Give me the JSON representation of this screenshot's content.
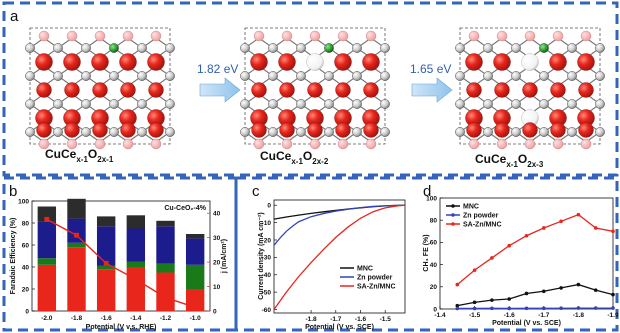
{
  "panel_labels": {
    "a": "a",
    "b": "b",
    "c": "c",
    "d": "d"
  },
  "panel_a": {
    "structures": [
      {
        "base": "CuCe",
        "sub1": "x-1",
        "mid": "O",
        "sub2": "2x-1"
      },
      {
        "base": "CuCe",
        "sub1": "x-1",
        "mid": "O",
        "sub2": "2x-2"
      },
      {
        "base": "CuCe",
        "sub1": "x-1",
        "mid": "O",
        "sub2": "2x-3"
      }
    ],
    "energies": [
      "1.82 eV",
      "1.65 eV"
    ],
    "colors": {
      "ox_vacancy": "#ffffff",
      "oxygen": "#e8261c",
      "oxygen_back": "#f3a0a0",
      "cerium": "#c9c9c9",
      "copper": "#2aa02b",
      "frame": "#3366bb"
    }
  },
  "chart_data": [
    {
      "type": "bar",
      "panel": "b",
      "annotation": "Cu-CeO₂-4%",
      "xlabel": "Potential (V v.s. RHE)",
      "ylabel_left": "Faradaic Efficiency (%)",
      "ylabel_right": "j (mA/cm²)",
      "categories": [
        "-2.0",
        "-1.8",
        "-1.6",
        "-1.4",
        "-1.2",
        "-1.0"
      ],
      "ylim": [
        0,
        100
      ],
      "ylim_right": [
        0,
        45
      ],
      "yticks": [
        0,
        20,
        40,
        60,
        80,
        100
      ],
      "yticks_right": [
        0,
        10,
        20,
        30,
        40
      ],
      "series": [
        {
          "color": "#e8261c",
          "values": [
            42,
            58,
            38,
            40,
            35,
            20
          ]
        },
        {
          "color": "#1a7a1a",
          "values": [
            6,
            4,
            3,
            5,
            8,
            22
          ]
        },
        {
          "color": "#1c1c8c",
          "values": [
            33,
            22,
            36,
            30,
            34,
            24
          ]
        },
        {
          "color": "#2c2c2c",
          "values": [
            14,
            18,
            9,
            12,
            5,
            4
          ]
        }
      ],
      "line": {
        "color": "#e8261c",
        "values": [
          37.5,
          31,
          19.5,
          13,
          5.5,
          1.5
        ]
      }
    },
    {
      "type": "line",
      "panel": "c",
      "xlabel": "Potential (V vs. SCE)",
      "ylabel": "Current density (mA cm⁻²)",
      "xlim": [
        -1.95,
        -1.42
      ],
      "ylim": [
        -62,
        3
      ],
      "xticks": [
        "-1.8",
        "-1.7",
        "-1.6",
        "-1.5"
      ],
      "yticks": [
        "0",
        "-10",
        "-20",
        "-30",
        "-40",
        "-50",
        "-60"
      ],
      "series": [
        {
          "name": "MNC",
          "color": "#111111",
          "x": [
            -1.95,
            -1.9,
            -1.85,
            -1.8,
            -1.75,
            -1.7,
            -1.65,
            -1.6,
            -1.55,
            -1.5,
            -1.45,
            -1.42
          ],
          "y": [
            -8,
            -6.8,
            -5.7,
            -4.7,
            -3.8,
            -3.0,
            -2.2,
            -1.5,
            -0.9,
            -0.4,
            -0.1,
            0
          ]
        },
        {
          "name": "Zn powder",
          "color": "#3344bb",
          "x": [
            -1.95,
            -1.92,
            -1.9,
            -1.87,
            -1.85,
            -1.8,
            -1.75,
            -1.7,
            -1.65,
            -1.6,
            -1.55,
            -1.5,
            -1.45,
            -1.42
          ],
          "y": [
            -23,
            -18,
            -15,
            -11.5,
            -9.5,
            -6.6,
            -4.8,
            -3.4,
            -2.3,
            -1.4,
            -0.7,
            -0.3,
            -0.1,
            0
          ]
        },
        {
          "name": "SA-Zn/MNC",
          "color": "#e8261c",
          "x": [
            -1.95,
            -1.9,
            -1.85,
            -1.8,
            -1.75,
            -1.7,
            -1.65,
            -1.6,
            -1.55,
            -1.5,
            -1.45,
            -1.42
          ],
          "y": [
            -60,
            -50,
            -41,
            -33,
            -25.5,
            -18.5,
            -12.5,
            -7.5,
            -3.8,
            -1.5,
            -0.4,
            0
          ]
        }
      ]
    },
    {
      "type": "line",
      "panel": "d",
      "xlabel": "Potential (V vs. SCE)",
      "ylabel": "CH₄ FE (%)",
      "xlim": [
        -1.4,
        -1.9
      ],
      "ylim": [
        0,
        100
      ],
      "xticks": [
        "-1.4",
        "-1.5",
        "-1.6",
        "-1.7",
        "-1.8",
        "-1.9"
      ],
      "yticks": [
        "0",
        "20",
        "40",
        "60",
        "80",
        "100"
      ],
      "series": [
        {
          "name": "MNC",
          "color": "#111111",
          "x": [
            -1.45,
            -1.5,
            -1.55,
            -1.6,
            -1.65,
            -1.7,
            -1.75,
            -1.8,
            -1.85,
            -1.9
          ],
          "y": [
            3,
            6,
            8,
            9,
            14,
            16,
            19,
            22,
            17,
            13
          ]
        },
        {
          "name": "Zn powder",
          "color": "#3344bb",
          "x": [
            -1.45,
            -1.5,
            -1.55,
            -1.6,
            -1.65,
            -1.7,
            -1.75,
            -1.8,
            -1.85,
            -1.9
          ],
          "y": [
            0.5,
            0.5,
            0.6,
            0.5,
            0.6,
            0.6,
            0.7,
            0.8,
            0.8,
            0.8
          ]
        },
        {
          "name": "SA-Zn/MNC",
          "color": "#e8261c",
          "x": [
            -1.45,
            -1.5,
            -1.55,
            -1.6,
            -1.65,
            -1.7,
            -1.75,
            -1.8,
            -1.85,
            -1.9
          ],
          "y": [
            22,
            35,
            46,
            57,
            66,
            73,
            79,
            85,
            73,
            70
          ]
        }
      ]
    }
  ]
}
